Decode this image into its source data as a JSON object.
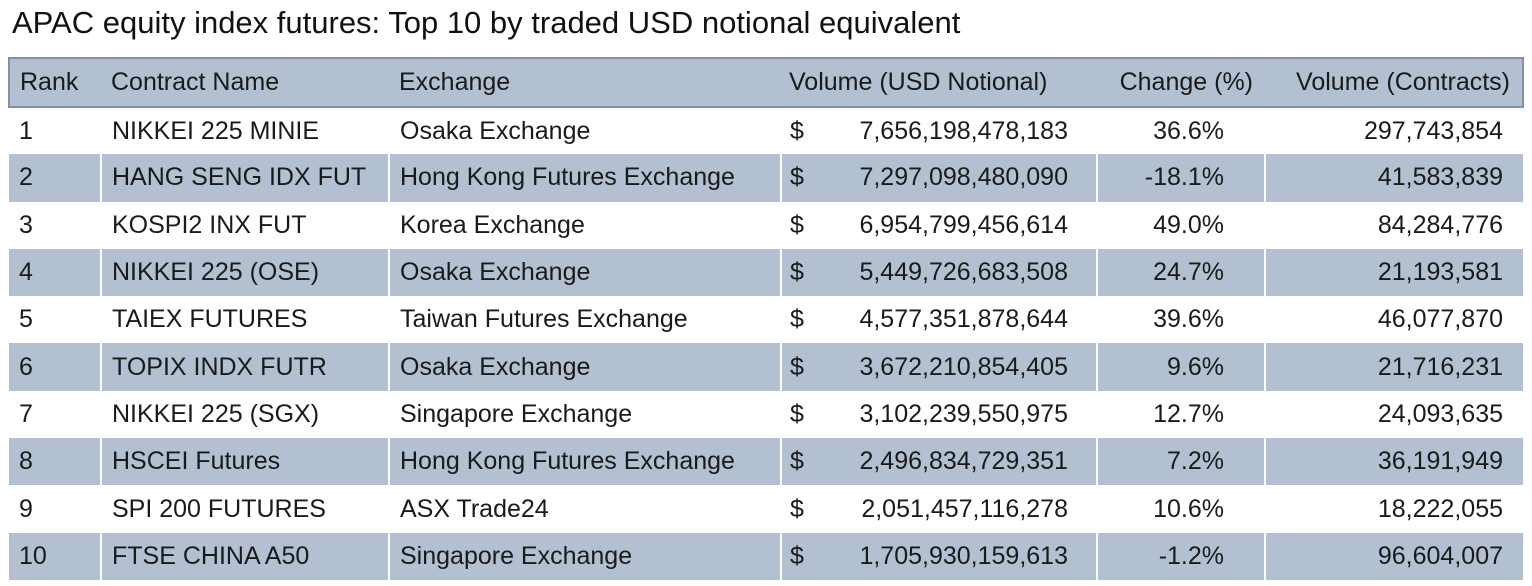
{
  "title": "APAC equity index futures: Top 10 by traded USD notional equivalent",
  "table": {
    "headers": {
      "rank": "Rank",
      "name": "Contract Name",
      "exchange": "Exchange",
      "volume_usd": "Volume (USD Notional)",
      "change": "Change (%)",
      "volume_contracts": "Volume (Contracts)"
    },
    "currency_symbol": "$",
    "rows": [
      {
        "rank": "1",
        "name": "NIKKEI 225 MINIE",
        "exchange": "Osaka Exchange",
        "volume_usd": "7,656,198,478,183",
        "change": "36.6%",
        "volume_contracts": "297,743,854"
      },
      {
        "rank": "2",
        "name": "HANG SENG IDX FUT",
        "exchange": "Hong Kong Futures Exchange",
        "volume_usd": "7,297,098,480,090",
        "change": "-18.1%",
        "volume_contracts": "41,583,839"
      },
      {
        "rank": "3",
        "name": "KOSPI2 INX FUT",
        "exchange": "Korea Exchange",
        "volume_usd": "6,954,799,456,614",
        "change": "49.0%",
        "volume_contracts": "84,284,776"
      },
      {
        "rank": "4",
        "name": "NIKKEI 225 (OSE)",
        "exchange": "Osaka Exchange",
        "volume_usd": "5,449,726,683,508",
        "change": "24.7%",
        "volume_contracts": "21,193,581"
      },
      {
        "rank": "5",
        "name": "TAIEX FUTURES",
        "exchange": "Taiwan Futures Exchange",
        "volume_usd": "4,577,351,878,644",
        "change": "39.6%",
        "volume_contracts": "46,077,870"
      },
      {
        "rank": "6",
        "name": "TOPIX INDX FUTR",
        "exchange": "Osaka Exchange",
        "volume_usd": "3,672,210,854,405",
        "change": "9.6%",
        "volume_contracts": "21,716,231"
      },
      {
        "rank": "7",
        "name": "NIKKEI 225 (SGX)",
        "exchange": "Singapore Exchange",
        "volume_usd": "3,102,239,550,975",
        "change": "12.7%",
        "volume_contracts": "24,093,635"
      },
      {
        "rank": "8",
        "name": "HSCEI Futures",
        "exchange": "Hong Kong Futures Exchange",
        "volume_usd": "2,496,834,729,351",
        "change": "7.2%",
        "volume_contracts": "36,191,949"
      },
      {
        "rank": "9",
        "name": "SPI 200 FUTURES",
        "exchange": "ASX Trade24",
        "volume_usd": "2,051,457,116,278",
        "change": "10.6%",
        "volume_contracts": "18,222,055"
      },
      {
        "rank": "10",
        "name": "FTSE CHINA A50",
        "exchange": "Singapore Exchange",
        "volume_usd": "1,705,930,159,613",
        "change": "-1.2%",
        "volume_contracts": "96,604,007"
      }
    ]
  },
  "colors": {
    "header_band": "#b2c0d1",
    "row_band": "#b2c0d1",
    "header_border": "#8091a5"
  }
}
